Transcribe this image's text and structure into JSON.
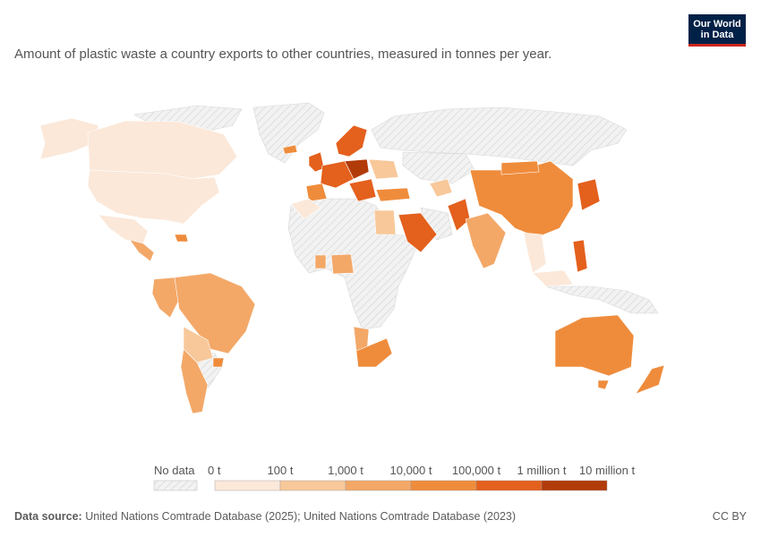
{
  "subtitle": "Amount of plastic waste a country exports to other countries, measured in tonnes per year.",
  "logo": {
    "line1": "Our World",
    "line2": "in Data"
  },
  "legend": {
    "no_data": "No data",
    "bins": [
      {
        "label": "0 t",
        "color": "#fbe8d9"
      },
      {
        "label": "100 t",
        "color": "#f8c89a"
      },
      {
        "label": "1,000 t",
        "color": "#f3a868"
      },
      {
        "label": "10,000 t",
        "color": "#ef8c3c"
      },
      {
        "label": "100,000 t",
        "color": "#e4601d"
      },
      {
        "label": "1 million t",
        "color": "#b23b0a"
      },
      {
        "label": "10 million t",
        "color": ""
      }
    ]
  },
  "colors": {
    "nodata": "#eeeeee",
    "border": "#ffffff",
    "accent": "#002147",
    "brand_red": "#ce261e"
  },
  "footer": {
    "source_label": "Data source:",
    "source_text": "United Nations Comtrade Database (2025); United Nations Comtrade Database (2023)",
    "license": "CC BY"
  }
}
